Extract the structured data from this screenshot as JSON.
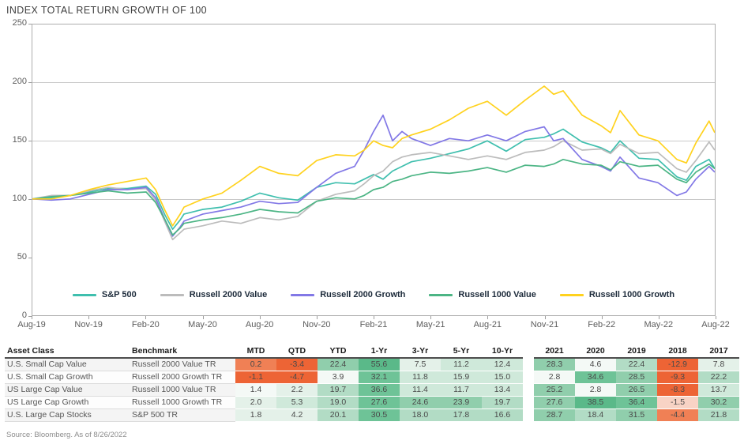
{
  "title": "INDEX TOTAL RETURN GROWTH OF 100",
  "source": "Source: Bloomberg. As of 8/26/2022",
  "colors": {
    "sp500": "#3fbfae",
    "russell_2000_value": "#bcbcbc",
    "russell_2000_growth": "#8278e6",
    "russell_1000_value": "#4cb585",
    "russell_1000_growth": "#ffd21e",
    "gridline": "#c9c9c9",
    "frame_border": "#adadad",
    "legend_text": "#1c2a3a"
  },
  "palette": {
    "g0": "#f4f9f6",
    "g1": "#e4f1e9",
    "g2": "#cfe9da",
    "g3": "#b2dcc5",
    "g4": "#90ceac",
    "g5": "#6ec397",
    "g6": "#5ab989",
    "o1": "#f8d3c5",
    "o2": "#f08055",
    "o3": "#ed6435"
  },
  "chart_data": {
    "type": "line",
    "title": "INDEX TOTAL RETURN GROWTH OF 100",
    "ylim": [
      0,
      250
    ],
    "yticks": [
      0,
      50,
      100,
      150,
      200,
      250
    ],
    "gridlines_at": [
      100,
      150,
      200
    ],
    "grid": "horizontal-only",
    "legend_position": "bottom-inside",
    "x_tick_labels": [
      "Aug-19",
      "Nov-19",
      "Feb-20",
      "May-20",
      "Aug-20",
      "Nov-20",
      "Feb-21",
      "May-21",
      "Aug-21",
      "Nov-21",
      "Feb-22",
      "May-22",
      "Aug-22"
    ],
    "x_unit": "months since Aug-2019 (0 = Aug-19, 36 = Aug-22)",
    "x": [
      0,
      1,
      2,
      3,
      4,
      5,
      6,
      6.5,
      7,
      7.4,
      7.8,
      8,
      9,
      10,
      11,
      12,
      13,
      14,
      15,
      16,
      17,
      17.5,
      18,
      18.5,
      19,
      19.5,
      20,
      21,
      22,
      23,
      24,
      25,
      26,
      27,
      27.5,
      28,
      29,
      30,
      30.5,
      31,
      32,
      33,
      34,
      34.5,
      35,
      35.7,
      36
    ],
    "series": [
      {
        "name": "S&P 500",
        "color": "#3fbfae",
        "values": [
          100,
          101,
          103,
          106,
          109,
          109,
          111,
          104,
          86,
          74,
          82,
          87,
          91,
          93,
          98,
          105,
          101,
          99,
          110,
          114,
          113,
          117,
          121,
          117,
          124,
          128,
          132,
          135,
          139,
          143,
          150,
          141,
          151,
          153,
          156,
          160,
          149,
          144,
          140,
          150,
          135,
          134,
          119,
          116,
          128,
          134,
          126
        ]
      },
      {
        "name": "Russell 2000 Value",
        "color": "#bcbcbc",
        "values": [
          100,
          103,
          103,
          107,
          110,
          108,
          109,
          99,
          80,
          65,
          71,
          74,
          77,
          81,
          79,
          84,
          82,
          85,
          98,
          104,
          107,
          113,
          120,
          124,
          132,
          136,
          138,
          140,
          137,
          134,
          137,
          134,
          140,
          142,
          145,
          150,
          142,
          143,
          139,
          147,
          139,
          140,
          126,
          123,
          133,
          149,
          142
        ]
      },
      {
        "name": "Russell 2000 Growth",
        "color": "#8278e6",
        "values": [
          100,
          99,
          100,
          104,
          108,
          108,
          110,
          101,
          82,
          68,
          76,
          81,
          87,
          90,
          93,
          98,
          96,
          97,
          110,
          122,
          128,
          142,
          158,
          172,
          150,
          158,
          152,
          146,
          152,
          150,
          155,
          150,
          158,
          162,
          150,
          152,
          134,
          128,
          124,
          136,
          118,
          114,
          103,
          106,
          117,
          128,
          123
        ]
      },
      {
        "name": "Russell 1000 Value",
        "color": "#4cb585",
        "values": [
          100,
          102,
          103,
          105,
          107,
          105,
          106,
          97,
          82,
          69,
          75,
          79,
          82,
          84,
          87,
          91,
          89,
          88,
          98,
          101,
          100,
          103,
          108,
          110,
          115,
          117,
          120,
          123,
          122,
          124,
          127,
          123,
          129,
          128,
          130,
          134,
          130,
          129,
          125,
          132,
          128,
          129,
          117,
          114,
          123,
          130,
          126
        ]
      },
      {
        "name": "Russell 1000 Growth",
        "color": "#ffd21e",
        "values": [
          100,
          100,
          103,
          108,
          112,
          115,
          118,
          108,
          90,
          77,
          87,
          93,
          100,
          105,
          116,
          128,
          122,
          120,
          133,
          138,
          137,
          142,
          150,
          146,
          144,
          152,
          155,
          160,
          168,
          178,
          184,
          172,
          185,
          197,
          190,
          193,
          172,
          163,
          157,
          176,
          155,
          150,
          134,
          131,
          148,
          167,
          157
        ]
      }
    ]
  },
  "table": {
    "headers": [
      "Asset Class",
      "Benchmark",
      "MTD",
      "QTD",
      "YTD",
      "1-Yr",
      "3-Yr",
      "5-Yr",
      "10-Yr"
    ],
    "year_headers": [
      "2021",
      "2020",
      "2019",
      "2018",
      "2017"
    ],
    "rows": [
      {
        "asset_class": "U.S. Small Cap Value",
        "benchmark": "Russell 2000 Value TR",
        "values": [
          "0.2",
          "-3.4",
          "22.4",
          "55.6",
          "7.5",
          "11.2",
          "12.4"
        ],
        "value_colors": [
          "o2",
          "o3",
          "g4",
          "g6",
          "g1",
          "g2",
          "g2"
        ],
        "years": [
          "28.3",
          "4.6",
          "22.4",
          "-12.9",
          "7.8"
        ],
        "year_colors": [
          "g4",
          "g0",
          "g3",
          "o3",
          "g1"
        ]
      },
      {
        "asset_class": "U.S. Small Cap Growth",
        "benchmark": "Russell 2000 Growth TR",
        "values": [
          "-1.1",
          "-4.7",
          "3.9",
          "32.1",
          "11.8",
          "15.9",
          "15.0"
        ],
        "value_colors": [
          "o3",
          "o3",
          "g0",
          "g5",
          "g2",
          "g2",
          "g2"
        ],
        "years": [
          "2.8",
          "34.6",
          "28.5",
          "-9.3",
          "22.2"
        ],
        "year_colors": [
          "g0",
          "g5",
          "g4",
          "o3",
          "g3"
        ]
      },
      {
        "asset_class": "US Large Cap Value",
        "benchmark": "Russell 1000 Value TR",
        "values": [
          "1.4",
          "2.2",
          "19.7",
          "36.6",
          "11.4",
          "11.7",
          "13.4"
        ],
        "value_colors": [
          "g0",
          "g1",
          "g3",
          "g5",
          "g2",
          "g2",
          "g2"
        ],
        "years": [
          "25.2",
          "2.8",
          "26.5",
          "-8.3",
          "13.7"
        ],
        "year_colors": [
          "g4",
          "g0",
          "g4",
          "o3",
          "g2"
        ]
      },
      {
        "asset_class": "US Large Cap Growth",
        "benchmark": "Russell 1000 Growth TR",
        "values": [
          "2.0",
          "5.3",
          "19.0",
          "27.6",
          "24.6",
          "23.9",
          "19.7"
        ],
        "value_colors": [
          "g1",
          "g2",
          "g3",
          "g5",
          "g4",
          "g4",
          "g3"
        ],
        "years": [
          "27.6",
          "38.5",
          "36.4",
          "-1.5",
          "30.2"
        ],
        "year_colors": [
          "g4",
          "g6",
          "g5",
          "o1",
          "g4"
        ]
      },
      {
        "asset_class": "U.S. Large Cap Stocks",
        "benchmark": "S&P 500 TR",
        "values": [
          "1.8",
          "4.2",
          "20.1",
          "30.5",
          "18.0",
          "17.8",
          "16.6"
        ],
        "value_colors": [
          "g1",
          "g1",
          "g3",
          "g5",
          "g3",
          "g3",
          "g3"
        ],
        "years": [
          "28.7",
          "18.4",
          "31.5",
          "-4.4",
          "21.8"
        ],
        "year_colors": [
          "g4",
          "g3",
          "g4",
          "o2",
          "g3"
        ]
      }
    ]
  }
}
